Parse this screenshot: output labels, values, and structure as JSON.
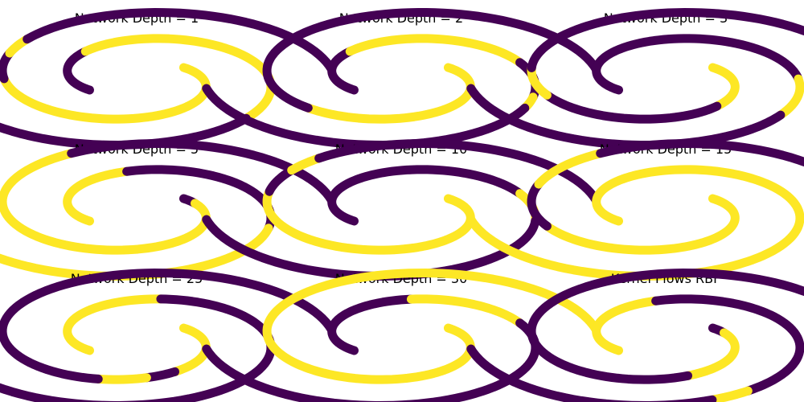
{
  "colors": {
    "purple": "#440154",
    "yellow": "#fde725",
    "background": "#ffffff"
  },
  "chart_data": [
    {
      "type": "scatter",
      "title": "Network Depth = 1",
      "axes_visible": false,
      "segments": {
        "outer": [
          [
            "yellow",
            0,
            0.55
          ],
          [
            "purple",
            0.55,
            0.62
          ],
          [
            "yellow",
            0.62,
            0.66
          ],
          [
            "purple",
            0.66,
            1
          ]
        ],
        "inner": [
          [
            "purple",
            0,
            0.22
          ],
          [
            "yellow",
            0.22,
            0.66
          ],
          [
            "purple",
            0.66,
            1
          ]
        ]
      }
    },
    {
      "type": "scatter",
      "title": "Network Depth = 2",
      "axes_visible": false,
      "segments": {
        "outer": [
          [
            "yellow",
            0,
            0.45
          ],
          [
            "purple",
            0.45,
            1
          ]
        ],
        "inner": [
          [
            "purple",
            0,
            0.22
          ],
          [
            "yellow",
            0.22,
            0.5
          ],
          [
            "purple",
            0.5,
            0.6
          ],
          [
            "yellow",
            0.6,
            0.63
          ],
          [
            "purple",
            0.63,
            1
          ]
        ]
      }
    },
    {
      "type": "scatter",
      "title": "Network Depth = 3",
      "axes_visible": false,
      "segments": {
        "outer": [
          [
            "yellow",
            0,
            0.22
          ],
          [
            "purple",
            0.22,
            0.5
          ],
          [
            "yellow",
            0.5,
            0.58
          ],
          [
            "purple",
            0.58,
            1
          ]
        ],
        "inner": [
          [
            "purple",
            0,
            0.55
          ],
          [
            "yellow",
            0.55,
            0.65
          ],
          [
            "purple",
            0.65,
            1
          ]
        ]
      }
    },
    {
      "type": "scatter",
      "title": "Network Depth = 5",
      "axes_visible": false,
      "segments": {
        "outer": [
          [
            "purple",
            0,
            0.04
          ],
          [
            "yellow",
            0.04,
            0.72
          ],
          [
            "purple",
            0.72,
            1
          ]
        ],
        "inner": [
          [
            "yellow",
            0,
            0.3
          ],
          [
            "purple",
            0.3,
            0.6
          ],
          [
            "yellow",
            0.6,
            1
          ]
        ]
      }
    },
    {
      "type": "scatter",
      "title": "Network Depth = 10",
      "axes_visible": false,
      "segments": {
        "outer": [
          [
            "yellow",
            0,
            0.6
          ],
          [
            "purple",
            0.6,
            0.66
          ],
          [
            "yellow",
            0.66,
            0.7
          ],
          [
            "purple",
            0.7,
            1
          ]
        ],
        "inner": [
          [
            "purple",
            0,
            0.5
          ],
          [
            "yellow",
            0.5,
            0.58
          ],
          [
            "purple",
            0.58,
            1
          ]
        ]
      }
    },
    {
      "type": "scatter",
      "title": "Network Depth = 15",
      "axes_visible": false,
      "segments": {
        "outer": [
          [
            "yellow",
            0,
            0.5
          ],
          [
            "purple",
            0.5,
            0.62
          ],
          [
            "yellow",
            0.62,
            0.72
          ],
          [
            "purple",
            0.72,
            1
          ]
        ],
        "inner": [
          [
            "yellow",
            0,
            1
          ]
        ]
      }
    },
    {
      "type": "scatter",
      "title": "Network Depth = 25",
      "axes_visible": false,
      "segments": {
        "outer": [
          [
            "yellow",
            0,
            0.25
          ],
          [
            "purple",
            0.25,
            0.3
          ],
          [
            "yellow",
            0.3,
            0.37
          ],
          [
            "purple",
            0.37,
            1
          ]
        ],
        "inner": [
          [
            "yellow",
            0,
            0.35
          ],
          [
            "purple",
            0.35,
            1
          ]
        ]
      }
    },
    {
      "type": "scatter",
      "title": "Network Depth = 30",
      "axes_visible": false,
      "segments": {
        "outer": [
          [
            "yellow",
            0,
            1
          ]
        ],
        "inner": [
          [
            "purple",
            0,
            0.33
          ],
          [
            "yellow",
            0.33,
            0.5
          ],
          [
            "purple",
            0.5,
            1
          ]
        ]
      }
    },
    {
      "type": "scatter",
      "title": "Kernel Flows RBF",
      "axes_visible": false,
      "segments": {
        "outer": [
          [
            "purple",
            0,
            0.04
          ],
          [
            "yellow",
            0.04,
            0.28
          ],
          [
            "purple",
            0.28,
            1
          ]
        ],
        "inner": [
          [
            "yellow",
            0,
            0.3
          ],
          [
            "purple",
            0.3,
            0.7
          ],
          [
            "yellow",
            0.7,
            0.74
          ],
          [
            "purple",
            0.74,
            1
          ]
        ]
      }
    }
  ]
}
